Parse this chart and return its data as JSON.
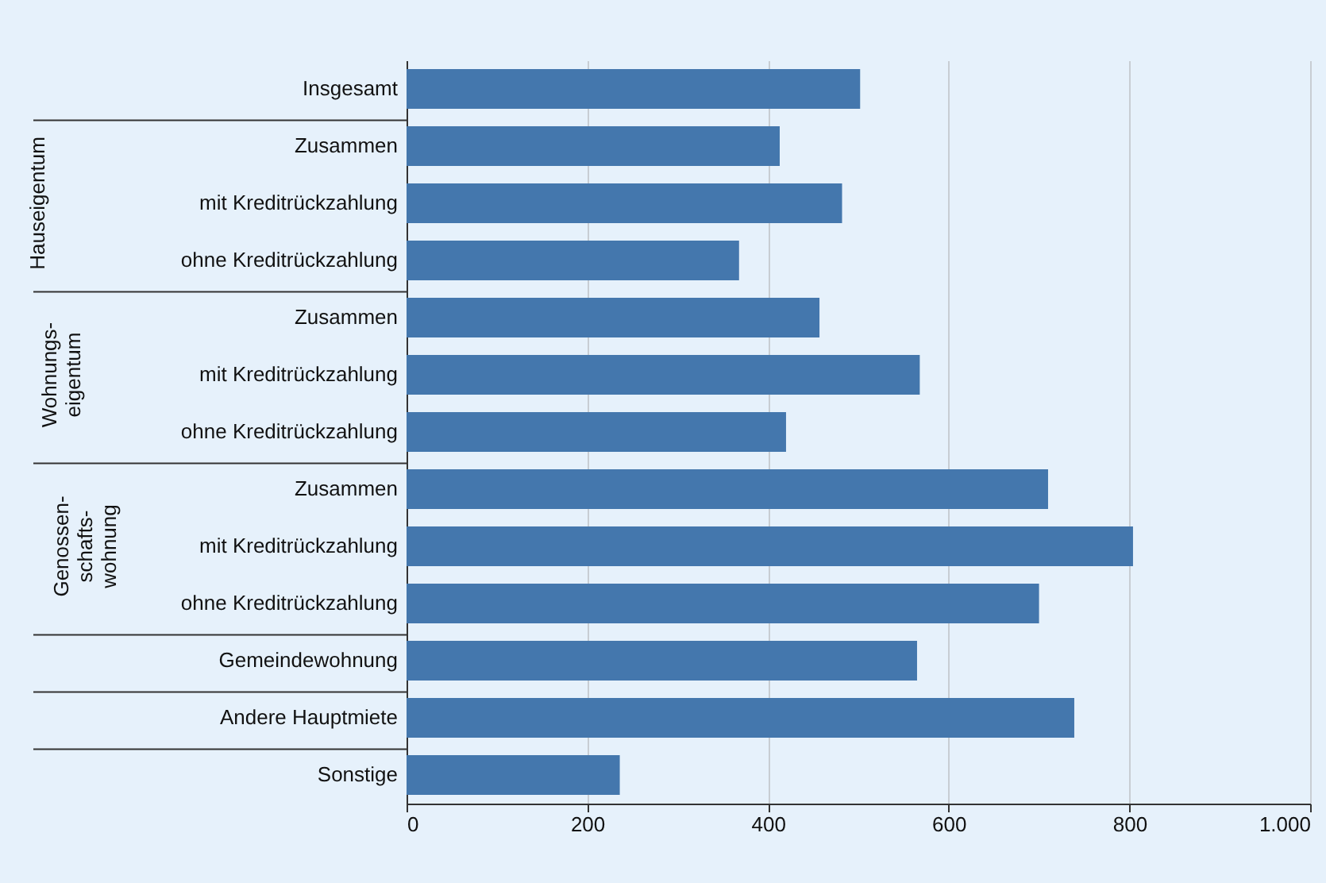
{
  "chart_data": {
    "type": "bar",
    "orientation": "horizontal",
    "categories": [
      "Insgesamt",
      "Zusammen",
      "mit Kreditrückzahlung",
      "ohne Kreditrückzahlung",
      "Zusammen",
      "mit Kreditrückzahlung",
      "ohne Kreditrückzahlung",
      "Zusammen",
      "mit Kreditrückzahlung",
      "ohne Kreditrückzahlung",
      "Gemeindewohnung",
      "Andere Hauptmiete",
      "Sonstige"
    ],
    "values": [
      502,
      413,
      482,
      368,
      457,
      568,
      420,
      710,
      804,
      700,
      565,
      739,
      236
    ],
    "color": "#4477ad",
    "xlim": [
      0,
      1000
    ],
    "xticks": [
      0,
      200,
      400,
      600,
      800,
      {
        "value": 1000,
        "label": "1.000"
      }
    ],
    "grid": "x",
    "annotations": [
      "Hauseigentum",
      "Wohnungs-\neigentum",
      "Genossen-\nschafts-\nwohnung"
    ]
  }
}
